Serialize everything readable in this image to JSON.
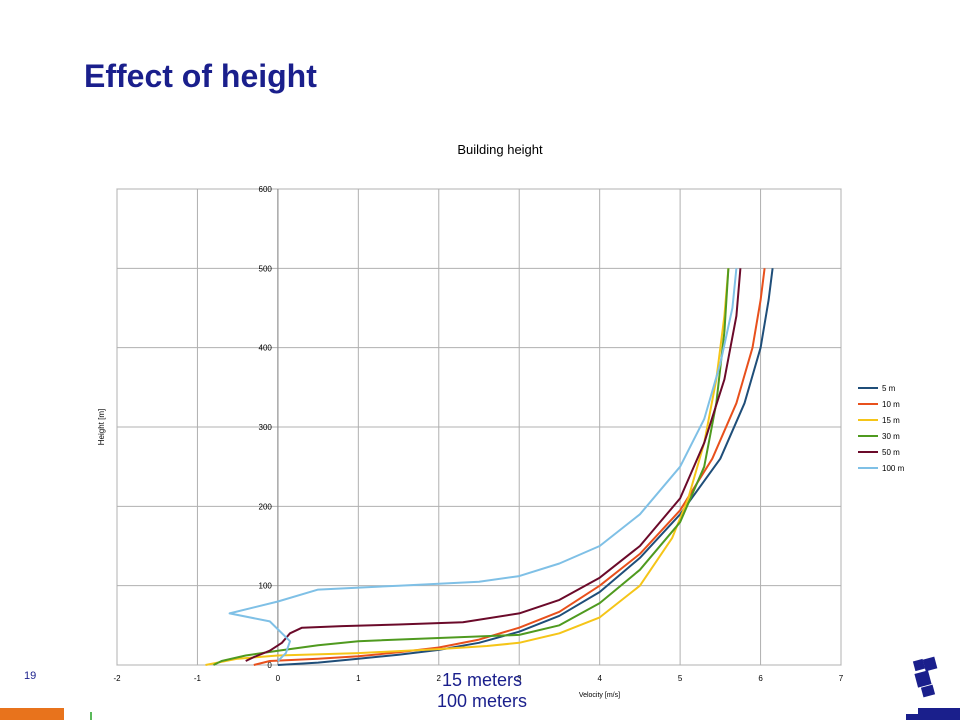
{
  "slide": {
    "title": "Effect of height",
    "page_number": "19",
    "overlay_lines": [
      "15 meters",
      "100 meters"
    ]
  },
  "colors": {
    "title": "#1a1f8c",
    "accent_orange": "#e8731c",
    "accent_navy": "#1a1f8c"
  },
  "chart_data": {
    "type": "line",
    "title": "Building height",
    "xlabel": "Velocity [m/s]",
    "ylabel": "Height [m]",
    "xlim": [
      -2,
      7
    ],
    "ylim": [
      0,
      600
    ],
    "xticks": [
      "-2",
      "-1",
      "0",
      "1",
      "2",
      "3",
      "4",
      "5",
      "6",
      "7"
    ],
    "yticks": [
      "0",
      "100",
      "200",
      "300",
      "400",
      "500",
      "600"
    ],
    "grid": true,
    "legend_position": "right",
    "series": [
      {
        "name": "5 m",
        "color": "#1f4e79",
        "points": [
          [
            0,
            0
          ],
          [
            0.5,
            3
          ],
          [
            1,
            8
          ],
          [
            1.5,
            13
          ],
          [
            2,
            19
          ],
          [
            2.5,
            28
          ],
          [
            3,
            42
          ],
          [
            3.5,
            62
          ],
          [
            4,
            92
          ],
          [
            4.5,
            135
          ],
          [
            5,
            190
          ],
          [
            5.5,
            260
          ],
          [
            5.8,
            330
          ],
          [
            6.0,
            400
          ],
          [
            6.1,
            460
          ],
          [
            6.15,
            500
          ]
        ]
      },
      {
        "name": "10 m",
        "color": "#e8501c",
        "points": [
          [
            -0.3,
            0
          ],
          [
            -0.1,
            5
          ],
          [
            0.5,
            8
          ],
          [
            1,
            11
          ],
          [
            1.5,
            16
          ],
          [
            2,
            22
          ],
          [
            2.5,
            32
          ],
          [
            3,
            47
          ],
          [
            3.5,
            67
          ],
          [
            4,
            100
          ],
          [
            4.5,
            140
          ],
          [
            5,
            195
          ],
          [
            5.4,
            260
          ],
          [
            5.7,
            330
          ],
          [
            5.9,
            400
          ],
          [
            6.0,
            460
          ],
          [
            6.05,
            500
          ]
        ]
      },
      {
        "name": "15 m",
        "color": "#f5c518",
        "points": [
          [
            -0.9,
            0
          ],
          [
            -0.5,
            8
          ],
          [
            0,
            12
          ],
          [
            1,
            15
          ],
          [
            2,
            20
          ],
          [
            2.6,
            24
          ],
          [
            3,
            28
          ],
          [
            3.5,
            40
          ],
          [
            4,
            60
          ],
          [
            4.5,
            100
          ],
          [
            4.9,
            160
          ],
          [
            5.1,
            210
          ],
          [
            5.3,
            280
          ],
          [
            5.45,
            360
          ],
          [
            5.55,
            440
          ],
          [
            5.6,
            500
          ]
        ]
      },
      {
        "name": "30 m",
        "color": "#4f9a1f",
        "points": [
          [
            -0.8,
            0
          ],
          [
            -0.7,
            5
          ],
          [
            -0.4,
            12
          ],
          [
            0,
            18
          ],
          [
            0.5,
            25
          ],
          [
            1,
            30
          ],
          [
            2,
            34
          ],
          [
            3,
            38
          ],
          [
            3.5,
            50
          ],
          [
            4,
            78
          ],
          [
            4.5,
            120
          ],
          [
            5,
            180
          ],
          [
            5.3,
            250
          ],
          [
            5.45,
            330
          ],
          [
            5.55,
            420
          ],
          [
            5.6,
            500
          ]
        ]
      },
      {
        "name": "50 m",
        "color": "#6b0a2a",
        "points": [
          [
            -0.4,
            5
          ],
          [
            -0.3,
            10
          ],
          [
            -0.1,
            18
          ],
          [
            0.05,
            28
          ],
          [
            0.15,
            40
          ],
          [
            0.3,
            47
          ],
          [
            0.8,
            49
          ],
          [
            1.5,
            51
          ],
          [
            2.3,
            54
          ],
          [
            3,
            65
          ],
          [
            3.5,
            82
          ],
          [
            4,
            110
          ],
          [
            4.5,
            150
          ],
          [
            5,
            210
          ],
          [
            5.3,
            280
          ],
          [
            5.55,
            360
          ],
          [
            5.7,
            440
          ],
          [
            5.75,
            500
          ]
        ]
      },
      {
        "name": "100 m",
        "color": "#7fc0e6",
        "points": [
          [
            0,
            5
          ],
          [
            0.1,
            15
          ],
          [
            0.15,
            30
          ],
          [
            -0.1,
            55
          ],
          [
            -0.6,
            65
          ],
          [
            0,
            80
          ],
          [
            0.5,
            95
          ],
          [
            1.5,
            100
          ],
          [
            2.5,
            105
          ],
          [
            3,
            112
          ],
          [
            3.5,
            128
          ],
          [
            4,
            150
          ],
          [
            4.5,
            190
          ],
          [
            5,
            250
          ],
          [
            5.3,
            310
          ],
          [
            5.5,
            380
          ],
          [
            5.65,
            450
          ],
          [
            5.7,
            500
          ]
        ]
      }
    ]
  }
}
